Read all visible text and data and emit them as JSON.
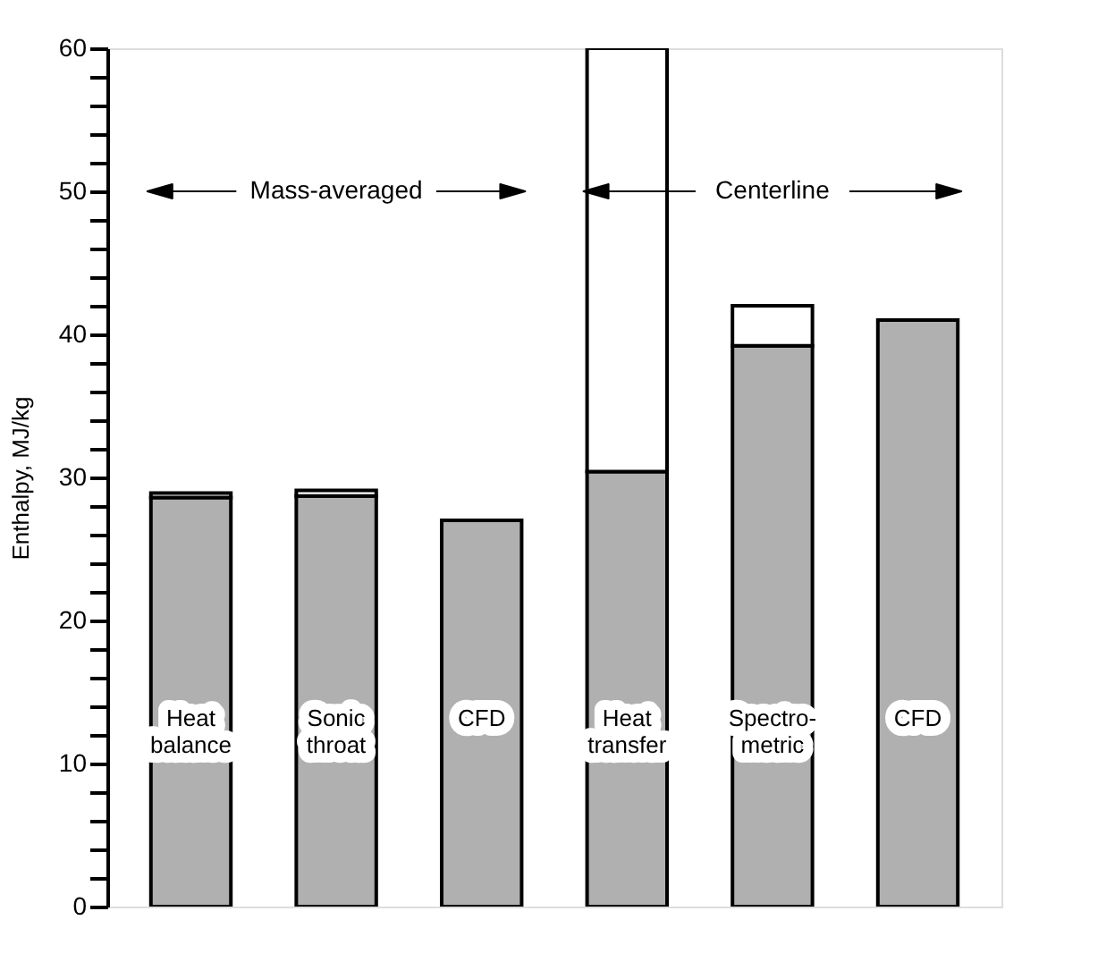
{
  "chart_data": {
    "type": "bar",
    "stacked": true,
    "ylabel": "Enthalpy, MJ/kg",
    "categories": [
      "Heat\nbalance",
      "Sonic\nthroat",
      "CFD",
      "Heat\ntransfer",
      "Spectro-\nmetric",
      "CFD"
    ],
    "series": [
      {
        "color": "#b0b0b0",
        "values": [
          28.6,
          28.7,
          27.0,
          30.4,
          39.2,
          41.0
        ]
      },
      {
        "color": "#ffffff",
        "values": [
          0.3,
          0.4,
          null,
          29.6,
          2.8,
          null
        ]
      }
    ],
    "ylim": [
      0,
      60
    ],
    "yticks": [
      0,
      {
        "value": 2,
        "label": null
      },
      {
        "value": 4,
        "label": null
      },
      {
        "value": 6,
        "label": null
      },
      {
        "value": 8,
        "label": null
      },
      10,
      {
        "value": 12,
        "label": null
      },
      {
        "value": 14,
        "label": null
      },
      {
        "value": 16,
        "label": null
      },
      {
        "value": 18,
        "label": null
      },
      20,
      {
        "value": 22,
        "label": null
      },
      {
        "value": 24,
        "label": null
      },
      {
        "value": 26,
        "label": null
      },
      {
        "value": 28,
        "label": null
      },
      30,
      {
        "value": 32,
        "label": null
      },
      {
        "value": 34,
        "label": null
      },
      {
        "value": 36,
        "label": null
      },
      {
        "value": 38,
        "label": null
      },
      40,
      {
        "value": 42,
        "label": null
      },
      {
        "value": 44,
        "label": null
      },
      {
        "value": 46,
        "label": null
      },
      {
        "value": 48,
        "label": null
      },
      50,
      {
        "value": 52,
        "label": null
      },
      {
        "value": 54,
        "label": null
      },
      {
        "value": 56,
        "label": null
      },
      {
        "value": 58,
        "label": null
      },
      60
    ],
    "grid": false,
    "legend": false,
    "tick_labels": "y",
    "annotations": [
      "Mass-averaged",
      "Centerline"
    ]
  }
}
